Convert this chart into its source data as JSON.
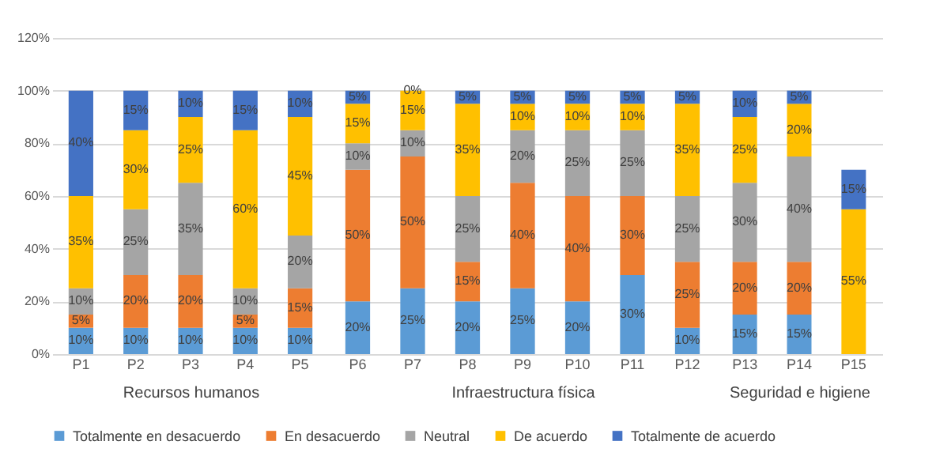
{
  "chart_data": [
    {
      "type": "bar",
      "stacked": true,
      "xlabel": "Recursos humanos",
      "categories": [
        "P1",
        "P2",
        "P3",
        "P4",
        "P5"
      ],
      "ylim": [
        0,
        120
      ],
      "yticks": [
        {
          "value": 0,
          "label": "0%"
        },
        {
          "value": 20,
          "label": "20%"
        },
        {
          "value": 40,
          "label": "40%"
        },
        {
          "value": 60,
          "label": "60%"
        },
        {
          "value": 80,
          "label": "80%"
        },
        {
          "value": 100,
          "label": "100%"
        },
        {
          "value": 120,
          "label": "120%"
        }
      ],
      "grid": "y",
      "legend": "bottom",
      "series": [
        {
          "name": "Totalmente en desacuerdo",
          "color": "#5b9bd5",
          "values": [
            10,
            10,
            10,
            10,
            10
          ],
          "value_labels": [
            "10%",
            "10%",
            "10%",
            "10%",
            "10%"
          ]
        },
        {
          "name": "En desacuerdo",
          "color": "#ed7d31",
          "values": [
            5,
            20,
            20,
            5,
            15
          ],
          "value_labels": [
            "5%",
            "20%",
            "20%",
            "5%",
            "15%"
          ]
        },
        {
          "name": "Neutral",
          "color": "#a5a5a5",
          "values": [
            10,
            25,
            35,
            10,
            20
          ],
          "value_labels": [
            "10%",
            "25%",
            "35%",
            "10%",
            "20%"
          ]
        },
        {
          "name": "De acuerdo",
          "color": "#ffc000",
          "values": [
            35,
            30,
            25,
            60,
            45
          ],
          "value_labels": [
            "35%",
            "30%",
            "25%",
            "60%",
            "45%"
          ]
        },
        {
          "name": "Totalmente de acuerdo",
          "color": "#4472c4",
          "values": [
            40,
            15,
            10,
            15,
            10
          ],
          "value_labels": [
            "40%",
            "15%",
            "10%",
            "15%",
            "10%"
          ]
        }
      ]
    },
    {
      "type": "bar",
      "stacked": true,
      "xlabel": "Infraestructura física",
      "categories": [
        "P6",
        "P7",
        "P8",
        "P9",
        "P10",
        "P11",
        "P12"
      ],
      "ylim": [
        0,
        120
      ],
      "yticks": [
        {
          "value": 0,
          "label": null
        },
        {
          "value": 20,
          "label": null
        },
        {
          "value": 40,
          "label": null
        },
        {
          "value": 60,
          "label": null
        },
        {
          "value": 80,
          "label": null
        },
        {
          "value": 100,
          "label": null
        },
        {
          "value": 120,
          "label": null
        }
      ],
      "grid": "y",
      "legend": "bottom",
      "tick_labels": "x",
      "series": [
        {
          "name": "Totalmente en desacuerdo",
          "color": "#5b9bd5",
          "values": [
            20,
            25,
            20,
            25,
            20,
            30,
            10
          ],
          "value_labels": [
            "20%",
            "25%",
            "20%",
            "25%",
            "20%",
            "30%",
            "10%"
          ]
        },
        {
          "name": "En desacuerdo",
          "color": "#ed7d31",
          "values": [
            50,
            50,
            15,
            40,
            40,
            30,
            25
          ],
          "value_labels": [
            "50%",
            "50%",
            "15%",
            "40%",
            "40%",
            "30%",
            "25%"
          ]
        },
        {
          "name": "Neutral",
          "color": "#a5a5a5",
          "values": [
            10,
            10,
            25,
            20,
            25,
            25,
            25
          ],
          "value_labels": [
            "10%",
            "10%",
            "25%",
            "20%",
            "25%",
            "25%",
            "25%"
          ]
        },
        {
          "name": "De acuerdo",
          "color": "#ffc000",
          "values": [
            15,
            15,
            35,
            10,
            10,
            10,
            35
          ],
          "value_labels": [
            "15%",
            "15%",
            "35%",
            "10%",
            "10%",
            "10%",
            "35%"
          ]
        },
        {
          "name": "Totalmente de acuerdo",
          "color": "#4472c4",
          "values": [
            5,
            0,
            5,
            5,
            5,
            5,
            5
          ],
          "value_labels": [
            "5%",
            "0%",
            "5%",
            "5%",
            "5%",
            "5%",
            "5%"
          ]
        }
      ]
    },
    {
      "type": "bar",
      "stacked": true,
      "xlabel": "Seguridad e higiene",
      "categories": [
        "P13",
        "P14",
        "P15"
      ],
      "ylim": [
        0,
        120
      ],
      "yticks": [
        {
          "value": 0,
          "label": null
        },
        {
          "value": 20,
          "label": null
        },
        {
          "value": 40,
          "label": null
        },
        {
          "value": 60,
          "label": null
        },
        {
          "value": 80,
          "label": null
        },
        {
          "value": 100,
          "label": null
        },
        {
          "value": 120,
          "label": null
        }
      ],
      "grid": "y",
      "legend": "bottom",
      "tick_labels": "x",
      "series": [
        {
          "name": "Totalmente en desacuerdo",
          "color": "#5b9bd5",
          "values": [
            15,
            15,
            null
          ],
          "value_labels": [
            "15%",
            "15%",
            null
          ]
        },
        {
          "name": "En desacuerdo",
          "color": "#ed7d31",
          "values": [
            20,
            20,
            null
          ],
          "value_labels": [
            "20%",
            "20%",
            null
          ]
        },
        {
          "name": "Neutral",
          "color": "#a5a5a5",
          "values": [
            30,
            40,
            null
          ],
          "value_labels": [
            "30%",
            "40%",
            null
          ]
        },
        {
          "name": "De acuerdo",
          "color": "#ffc000",
          "values": [
            25,
            20,
            55
          ],
          "value_labels": [
            "25%",
            "20%",
            "55%"
          ]
        },
        {
          "name": "Totalmente de acuerdo",
          "color": "#4472c4",
          "values": [
            10,
            5,
            15
          ],
          "value_labels": [
            "10%",
            "5%",
            "15%"
          ]
        }
      ]
    }
  ]
}
